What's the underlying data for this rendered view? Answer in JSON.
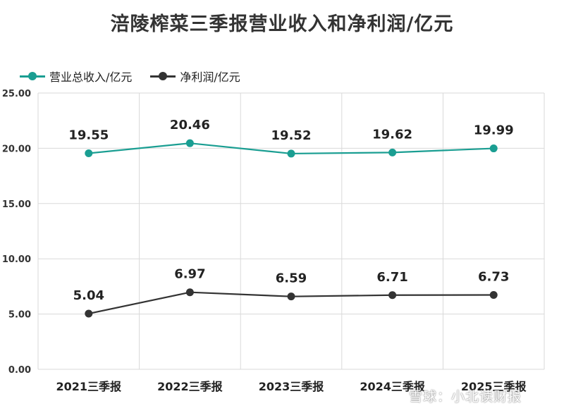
{
  "chart_data": {
    "type": "line",
    "title": "涪陵榨菜三季报营业收入和净利润/亿元",
    "categories": [
      "2021三季报",
      "2022三季报",
      "2023三季报",
      "2024三季报",
      "2025三季报"
    ],
    "series": [
      {
        "name": "营业总收入/亿元",
        "values": [
          19.55,
          20.46,
          19.52,
          19.62,
          19.99
        ],
        "labels": [
          "19.55",
          "20.46",
          "19.52",
          "19.62",
          "19.99"
        ],
        "color": "#1a9e92"
      },
      {
        "name": "净利润/亿元",
        "values": [
          5.04,
          6.97,
          6.59,
          6.71,
          6.73
        ],
        "labels": [
          "5.04",
          "6.97",
          "6.59",
          "6.71",
          "6.73"
        ],
        "color": "#333333"
      }
    ],
    "y_ticks": [
      "0.00",
      "5.00",
      "10.00",
      "15.00",
      "20.00",
      "25.00"
    ],
    "ylim": [
      0,
      25
    ],
    "grid": true,
    "legend_position": "top-left"
  },
  "watermark": "雪球：小北读财报"
}
